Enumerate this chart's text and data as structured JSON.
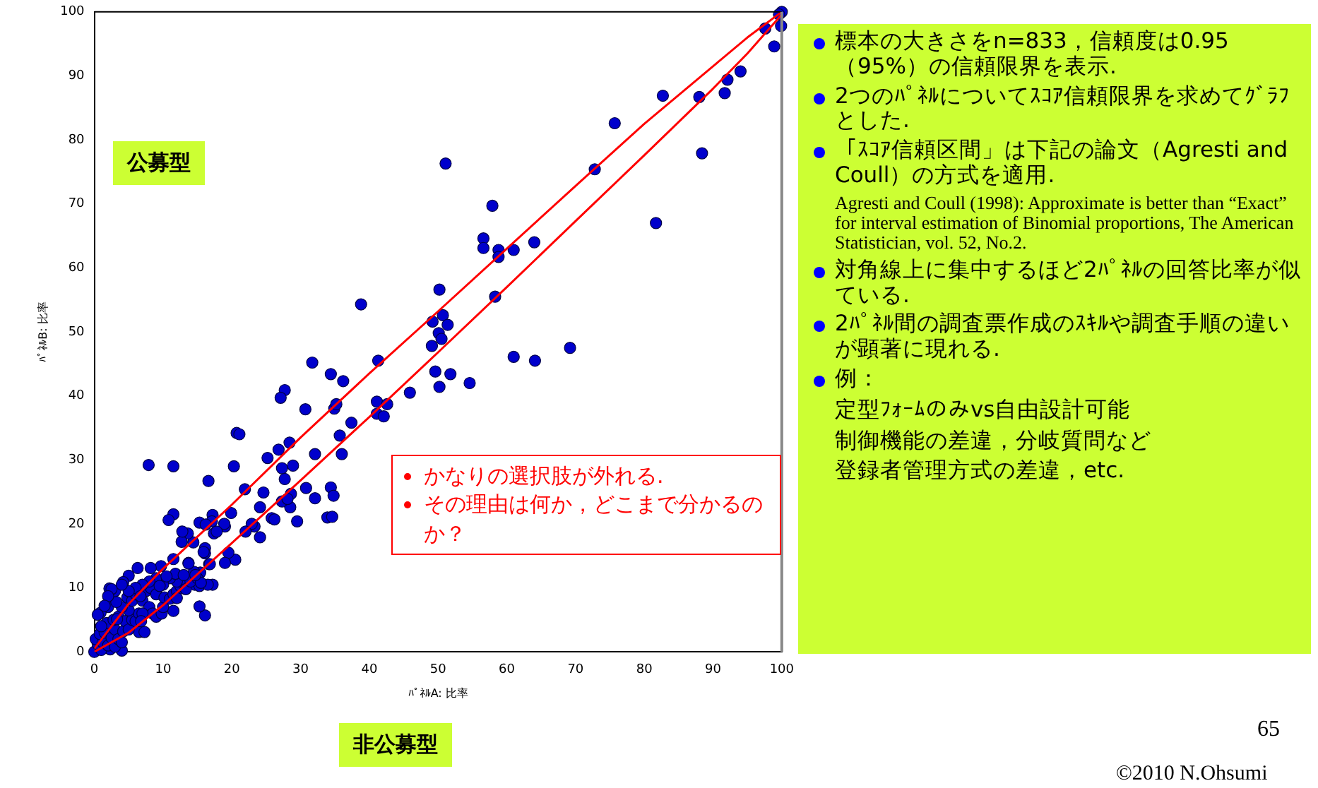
{
  "chart_data": {
    "type": "scatter",
    "xlabel": "ﾊﾟﾈﾙA: 比率",
    "ylabel": "ﾊﾟﾈﾙB: 比率",
    "xlim": [
      0,
      100
    ],
    "ylim": [
      0,
      100
    ],
    "xticks": [
      0,
      10,
      20,
      30,
      40,
      50,
      60,
      70,
      80,
      90,
      100
    ],
    "yticks": [
      0,
      10,
      20,
      30,
      40,
      50,
      60,
      70,
      80,
      90,
      100
    ],
    "grid": false,
    "legend": false,
    "marker": "circle",
    "series": [
      {
        "color": "#0000cc",
        "x": [
          45.9,
          41.3,
          36.2,
          34.4,
          31.7,
          27.7,
          27.1,
          30.7,
          34.9,
          35.2,
          37.4,
          35.7,
          36,
          32.1,
          28.4,
          26.8,
          25.2,
          27.3,
          28.9,
          27.7,
          30.8,
          32.1,
          34.4,
          34.8,
          33.9,
          34.6,
          29.5,
          28.5,
          28.6,
          27.3,
          28.1,
          24.6,
          24.1,
          24.1,
          25.8,
          26.2,
          23.3,
          22.9,
          22,
          21.9,
          20.7,
          21.1,
          20.3,
          20.5,
          19.5,
          19,
          19.9,
          19,
          18.9,
          17.2,
          17.1,
          17.4,
          17.8,
          17.2,
          16.7,
          16.1,
          16.1,
          15.3,
          16.2,
          16.6,
          16.1,
          15.3,
          14.4,
          13.6,
          12.7,
          12.8,
          11.5,
          10.8,
          11.5,
          7.9,
          11.5,
          11.5,
          13.7,
          15.4,
          14.6,
          15.3,
          9.7,
          8.2,
          6.3,
          5,
          4.2,
          2.2,
          2,
          0.9,
          6.5,
          7.3,
          4,
          2.3,
          41.1,
          41.1,
          42.1,
          42.6,
          100,
          99.6,
          99.9,
          97.6,
          98.9,
          94,
          92.1,
          91.7,
          88,
          82.7,
          88.4,
          75.7,
          72.8,
          81.7,
          51.1,
          57.9,
          56.6,
          56.6,
          58.8,
          58.8,
          61,
          64,
          58.3,
          50.2,
          49.2,
          50.7,
          51.4,
          50.1,
          50.5,
          38.8,
          49.1,
          61,
          64.1,
          69.2,
          49.6,
          51.8,
          50.2,
          54.6,
          0,
          0.5,
          0.2,
          1,
          1.2,
          0.8,
          1.5,
          2,
          2.5,
          3,
          3,
          3.5,
          4,
          4.2,
          1.8,
          2.8,
          3.5,
          4.5,
          5,
          5.5,
          6,
          6.5,
          5,
          4,
          3.2,
          4.8,
          5.5,
          6,
          7,
          7.5,
          8,
          8.5,
          9,
          9.8,
          10,
          7,
          6.8,
          8.2,
          9,
          10.2,
          11,
          11.5,
          12,
          12.5,
          13,
          13.3,
          14,
          14.5,
          15,
          16.5,
          15.5,
          12,
          11,
          10,
          9,
          8,
          7,
          6,
          5,
          3,
          2.5,
          4,
          2,
          1.5,
          11.8,
          13,
          10.5,
          9.5,
          3.3,
          6.7,
          12,
          13.7,
          16.8,
          14.7,
          15.9,
          0.5,
          1
        ],
        "values": [
          40.5,
          45.5,
          42.3,
          43.4,
          45.2,
          40.9,
          39.7,
          37.9,
          38,
          38.7,
          35.8,
          33.8,
          30.9,
          30.9,
          32.7,
          31.6,
          30.3,
          28.7,
          29.1,
          27,
          25.6,
          24,
          25.7,
          24.4,
          21,
          21.1,
          20.4,
          22.6,
          24.7,
          23.5,
          23.9,
          24.9,
          22.6,
          17.9,
          20.9,
          20.7,
          19.6,
          20,
          18.8,
          25.4,
          34.2,
          34,
          29,
          14.4,
          15.5,
          13.9,
          21.7,
          19.6,
          20,
          21.4,
          20.4,
          18.5,
          18.8,
          10.5,
          13.7,
          16.2,
          15.4,
          20.2,
          19.9,
          26.7,
          5.7,
          7.1,
          17.1,
          18.5,
          17.2,
          18.8,
          21.5,
          20.6,
          29,
          29.2,
          14.5,
          6.4,
          13.9,
          12.4,
          10.5,
          10.3,
          13.4,
          13.1,
          13.1,
          11.9,
          10.9,
          9.9,
          7,
          6.1,
          3.1,
          3.1,
          0.2,
          0.4,
          39.1,
          37.2,
          36.8,
          38.7,
          100,
          99.6,
          97.8,
          97.4,
          94.6,
          90.7,
          89.4,
          87.3,
          86.7,
          86.9,
          77.9,
          82.6,
          75.4,
          67,
          76.3,
          69.7,
          64.6,
          63.1,
          62.8,
          61.7,
          62.8,
          64,
          55.5,
          56.6,
          51.6,
          52.6,
          51.1,
          49.8,
          48.9,
          54.3,
          47.8,
          46.1,
          45.5,
          47.5,
          43.8,
          43.4,
          41.4,
          42,
          0,
          1.2,
          2,
          0.3,
          1.5,
          2.8,
          3,
          1,
          2.2,
          0.8,
          3.5,
          2,
          1.5,
          3.2,
          4.5,
          5,
          5.5,
          4.8,
          3.5,
          5,
          4.8,
          6,
          6.5,
          7,
          7.8,
          8.5,
          8,
          9,
          8,
          9.5,
          7,
          6,
          5.5,
          6,
          7,
          6,
          4.8,
          10,
          9,
          8.5,
          8.3,
          9,
          9.5,
          10.3,
          10.5,
          9.8,
          11,
          12.5,
          11.5,
          10.5,
          10.8,
          11,
          11.5,
          10.5,
          11.5,
          11,
          10.5,
          10,
          9.5,
          9.5,
          9.8,
          10.5,
          8.7,
          7.2,
          12.2,
          12,
          11.8,
          10.3,
          5.1,
          8.7,
          8.4,
          13.8,
          13.7,
          12,
          15.6,
          5.8,
          4
        ]
      },
      {
        "type": "line",
        "marker": "none",
        "color": "#ff0000",
        "x": [
          0,
          5,
          10,
          20,
          30,
          40,
          50,
          60,
          70,
          80,
          90,
          95,
          100
        ],
        "values": [
          0.5,
          7.5,
          13,
          23,
          33.5,
          43.5,
          53.2,
          63,
          72.8,
          82.5,
          91.5,
          96,
          100
        ]
      },
      {
        "type": "line",
        "marker": "none",
        "color": "#ff0000",
        "x": [
          0,
          5,
          10,
          20,
          30,
          40,
          50,
          60,
          70,
          80,
          90,
          95,
          100
        ],
        "values": [
          0,
          3,
          7.3,
          17,
          26.8,
          36.7,
          46.8,
          57,
          67.3,
          77.6,
          88,
          93.5,
          99.6
        ]
      }
    ],
    "annotations": [
      "公募型",
      "非公募型",
      "かなりの選択肢が外れる.",
      "その理由は何か，どこまで分かるのか？",
      "標本の大きさをn=833，信頼度は0.95（95%）の信頼限界を表示.",
      "2つのﾊﾟﾈﾙについてｽｺｱ信頼限界を求めてｸﾞﾗﾌとした.",
      "「ｽｺｱ信頼区間」は下記の論文（Agresti and Coull）の方式を適用.",
      "Agresti and Coull (1998): Approximate is better than “Exact” for interval estimation of Binomial proportions, The American Statistician, vol. 52, No.2.",
      "対角線上に集中するほど2ﾊﾟﾈﾙの回答比率が似ている.",
      "2ﾊﾟﾈﾙ間の調査票作成のｽｷﾙや調査手順の違いが顕著に現れる.",
      "例：",
      "定型ﾌｫｰﾑのみvs自由設計可能",
      "制御機能の差違，分岐質問など",
      "登録者管理方式の差違，etc.",
      "65",
      "©2010 N.Ohsumi"
    ]
  }
}
